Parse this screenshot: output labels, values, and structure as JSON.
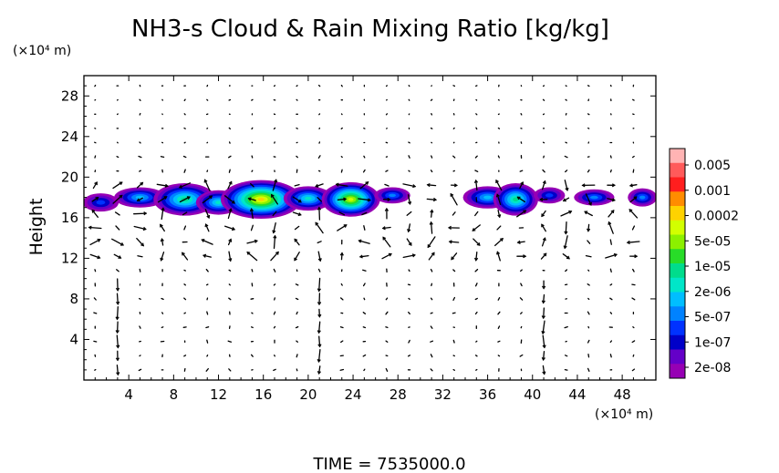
{
  "chart_data": {
    "type": "heatmap",
    "title": "NH3-s Cloud & Rain Mixing Ratio [kg/kg]",
    "ylabel": "Height",
    "x_unit": "(×10⁴ m)",
    "y_unit": "(×10⁴ m)",
    "footer": "TIME  =  7535000.0",
    "x_ticks": [
      4,
      8,
      12,
      16,
      20,
      24,
      28,
      32,
      36,
      40,
      44,
      48
    ],
    "y_ticks": [
      4,
      8,
      12,
      16,
      20,
      24,
      28
    ],
    "xlim": [
      0,
      51
    ],
    "ylim": [
      0,
      30
    ],
    "colorbar": {
      "labels": [
        "0.005",
        "0.001",
        "0.0002",
        "5e-05",
        "1e-05",
        "2e-06",
        "5e-07",
        "1e-07",
        "2e-08"
      ],
      "colors": [
        "#ffb4b4",
        "#ff5a5a",
        "#ff1e1e",
        "#ff8c00",
        "#ffd200",
        "#d2ff00",
        "#8cf000",
        "#28dc28",
        "#00dc8c",
        "#00e6c8",
        "#00beff",
        "#0082ff",
        "#0032ff",
        "#0000c8",
        "#6400c8",
        "#9600b4"
      ]
    },
    "cloud_blobs": [
      {
        "x": 1.5,
        "y": 17.5,
        "rx": 1.6,
        "ry": 0.9,
        "level": 3
      },
      {
        "x": 5.0,
        "y": 18.0,
        "rx": 2.3,
        "ry": 1.0,
        "level": 5
      },
      {
        "x": 9.0,
        "y": 17.8,
        "rx": 2.8,
        "ry": 1.6,
        "level": 7
      },
      {
        "x": 12.0,
        "y": 17.5,
        "rx": 2.0,
        "ry": 1.2,
        "level": 6
      },
      {
        "x": 15.8,
        "y": 17.8,
        "rx": 3.6,
        "ry": 1.9,
        "level": 11
      },
      {
        "x": 20.0,
        "y": 17.9,
        "rx": 2.2,
        "ry": 1.2,
        "level": 6
      },
      {
        "x": 23.8,
        "y": 17.8,
        "rx": 2.6,
        "ry": 1.7,
        "level": 10
      },
      {
        "x": 27.5,
        "y": 18.2,
        "rx": 1.6,
        "ry": 0.8,
        "level": 4
      },
      {
        "x": 36.0,
        "y": 18.0,
        "rx": 2.2,
        "ry": 1.1,
        "level": 5
      },
      {
        "x": 38.5,
        "y": 17.8,
        "rx": 2.0,
        "ry": 1.6,
        "level": 7
      },
      {
        "x": 41.5,
        "y": 18.2,
        "rx": 1.4,
        "ry": 0.8,
        "level": 3
      },
      {
        "x": 45.5,
        "y": 18.0,
        "rx": 1.8,
        "ry": 0.8,
        "level": 4
      },
      {
        "x": 49.8,
        "y": 18.0,
        "rx": 1.3,
        "ry": 0.9,
        "level": 4
      }
    ]
  }
}
